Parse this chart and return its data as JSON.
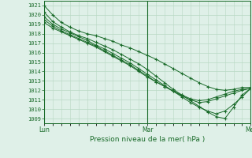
{
  "bg_color": "#dff0e8",
  "grid_color": "#b8d8c4",
  "line_color": "#1a6b2a",
  "marker_color": "#1a6b2a",
  "ylabel_ticks": [
    1009,
    1010,
    1011,
    1012,
    1013,
    1014,
    1015,
    1016,
    1017,
    1018,
    1019,
    1020,
    1021
  ],
  "ylim": [
    1008.5,
    1021.5
  ],
  "xlabel": "Pression niveau de la mer( hPa )",
  "xtick_labels": [
    "Lun",
    "Mar",
    "Mer"
  ],
  "xtick_positions": [
    0,
    48,
    96
  ],
  "total_hours": 96,
  "series": [
    [
      1021.0,
      1020.0,
      1019.2,
      1018.7,
      1018.3,
      1018.0,
      1017.8,
      1017.5,
      1017.2,
      1016.8,
      1016.5,
      1016.1,
      1015.7,
      1015.3,
      1014.8,
      1014.3,
      1013.8,
      1013.3,
      1012.8,
      1012.4,
      1012.1,
      1012.0,
      1012.1,
      1012.3,
      1012.3
    ],
    [
      1020.3,
      1019.3,
      1018.7,
      1018.2,
      1017.8,
      1017.5,
      1017.1,
      1016.7,
      1016.3,
      1015.8,
      1015.3,
      1014.8,
      1014.2,
      1013.5,
      1012.8,
      1012.1,
      1011.5,
      1010.9,
      1010.3,
      1009.7,
      1009.2,
      1009.0,
      1010.2,
      1011.5,
      1012.2
    ],
    [
      1019.8,
      1019.0,
      1018.5,
      1018.1,
      1017.7,
      1017.3,
      1016.8,
      1016.4,
      1015.9,
      1015.4,
      1014.9,
      1014.3,
      1013.7,
      1013.1,
      1012.5,
      1011.9,
      1011.3,
      1010.7,
      1010.2,
      1009.8,
      1009.5,
      1009.8,
      1010.5,
      1011.3,
      1012.2
    ],
    [
      1019.5,
      1018.8,
      1018.3,
      1017.9,
      1017.5,
      1017.1,
      1016.7,
      1016.2,
      1015.7,
      1015.2,
      1014.7,
      1014.1,
      1013.5,
      1012.9,
      1012.4,
      1011.9,
      1011.4,
      1011.0,
      1010.7,
      1010.8,
      1011.1,
      1011.4,
      1011.7,
      1012.0,
      1012.2
    ],
    [
      1019.2,
      1018.6,
      1018.2,
      1017.8,
      1017.4,
      1017.0,
      1016.6,
      1016.1,
      1015.6,
      1015.1,
      1014.6,
      1014.0,
      1013.4,
      1012.9,
      1012.4,
      1011.9,
      1011.5,
      1011.1,
      1010.9,
      1011.0,
      1011.3,
      1011.6,
      1011.9,
      1012.1,
      1012.2
    ]
  ],
  "series_hours": [
    0,
    4,
    8,
    12,
    16,
    20,
    24,
    28,
    32,
    36,
    40,
    44,
    48,
    52,
    56,
    60,
    64,
    68,
    72,
    76,
    80,
    84,
    88,
    92,
    96
  ]
}
